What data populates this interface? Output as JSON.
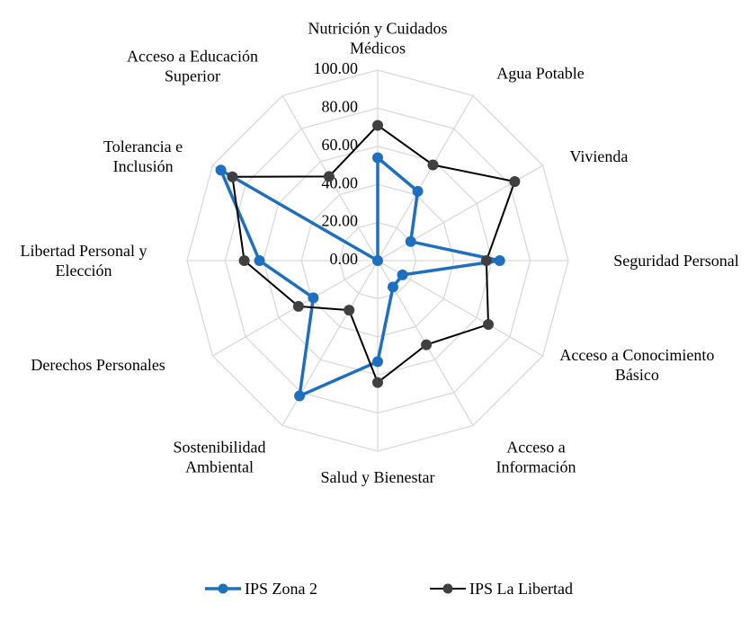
{
  "chart_data": {
    "type": "radar",
    "categories": [
      "Nutrición y Cuidados Médicos",
      "Agua Potable",
      "Vivienda",
      "Seguridad Personal",
      "Acceso a Conocimiento Básico",
      "Acceso a Información",
      "Salud y Bienestar",
      "Sostenibilidad Ambiental",
      "Derechos Personales",
      "Libertad Personal y Elección",
      "Tolerancia e Inclusión",
      "Acceso a Educación Superior"
    ],
    "series": [
      {
        "name": "IPS Zona 2",
        "color": "#1f6fbf",
        "values": [
          54,
          42,
          20,
          64,
          15,
          16,
          53,
          82,
          39,
          62,
          95,
          0
        ]
      },
      {
        "name": "IPS La Libertad",
        "color": "#000000",
        "values": [
          71,
          58,
          83,
          57,
          67,
          51,
          64,
          30,
          48,
          70,
          88,
          51
        ]
      }
    ],
    "ylim": [
      0,
      100
    ],
    "yticks": [
      {
        "value": 0,
        "label": "0.00"
      },
      {
        "value": 20,
        "label": "20.00"
      },
      {
        "value": 40,
        "label": "40.00"
      },
      {
        "value": 60,
        "label": "60.00"
      },
      {
        "value": 80,
        "label": "80.00"
      },
      {
        "value": 100,
        "label": "100.00"
      }
    ],
    "legend": "bottom"
  }
}
